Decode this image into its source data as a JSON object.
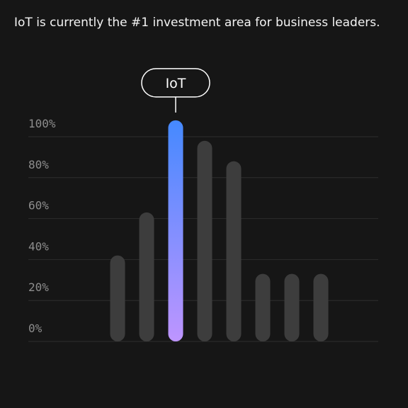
{
  "headline": "IoT is currently the #1 investment area for business leaders.",
  "colors": {
    "background": "#161616",
    "bar": "#3d3d3d",
    "grid": "#2e2e2e",
    "highlight_top": "#4589ff",
    "highlight_bottom": "#be95ff",
    "tick_text": "#8d8d8d"
  },
  "chart_data": {
    "type": "bar",
    "title": "IoT is currently the #1 investment area for business leaders.",
    "y_ticks": [
      "0%",
      "20%",
      "40%",
      "60%",
      "80%",
      "100%"
    ],
    "ylim": [
      0,
      100
    ],
    "grid": true,
    "values": [
      42,
      63,
      108,
      98,
      88,
      33,
      33,
      33
    ],
    "highlight_index": 2,
    "annotation": "IoT"
  }
}
